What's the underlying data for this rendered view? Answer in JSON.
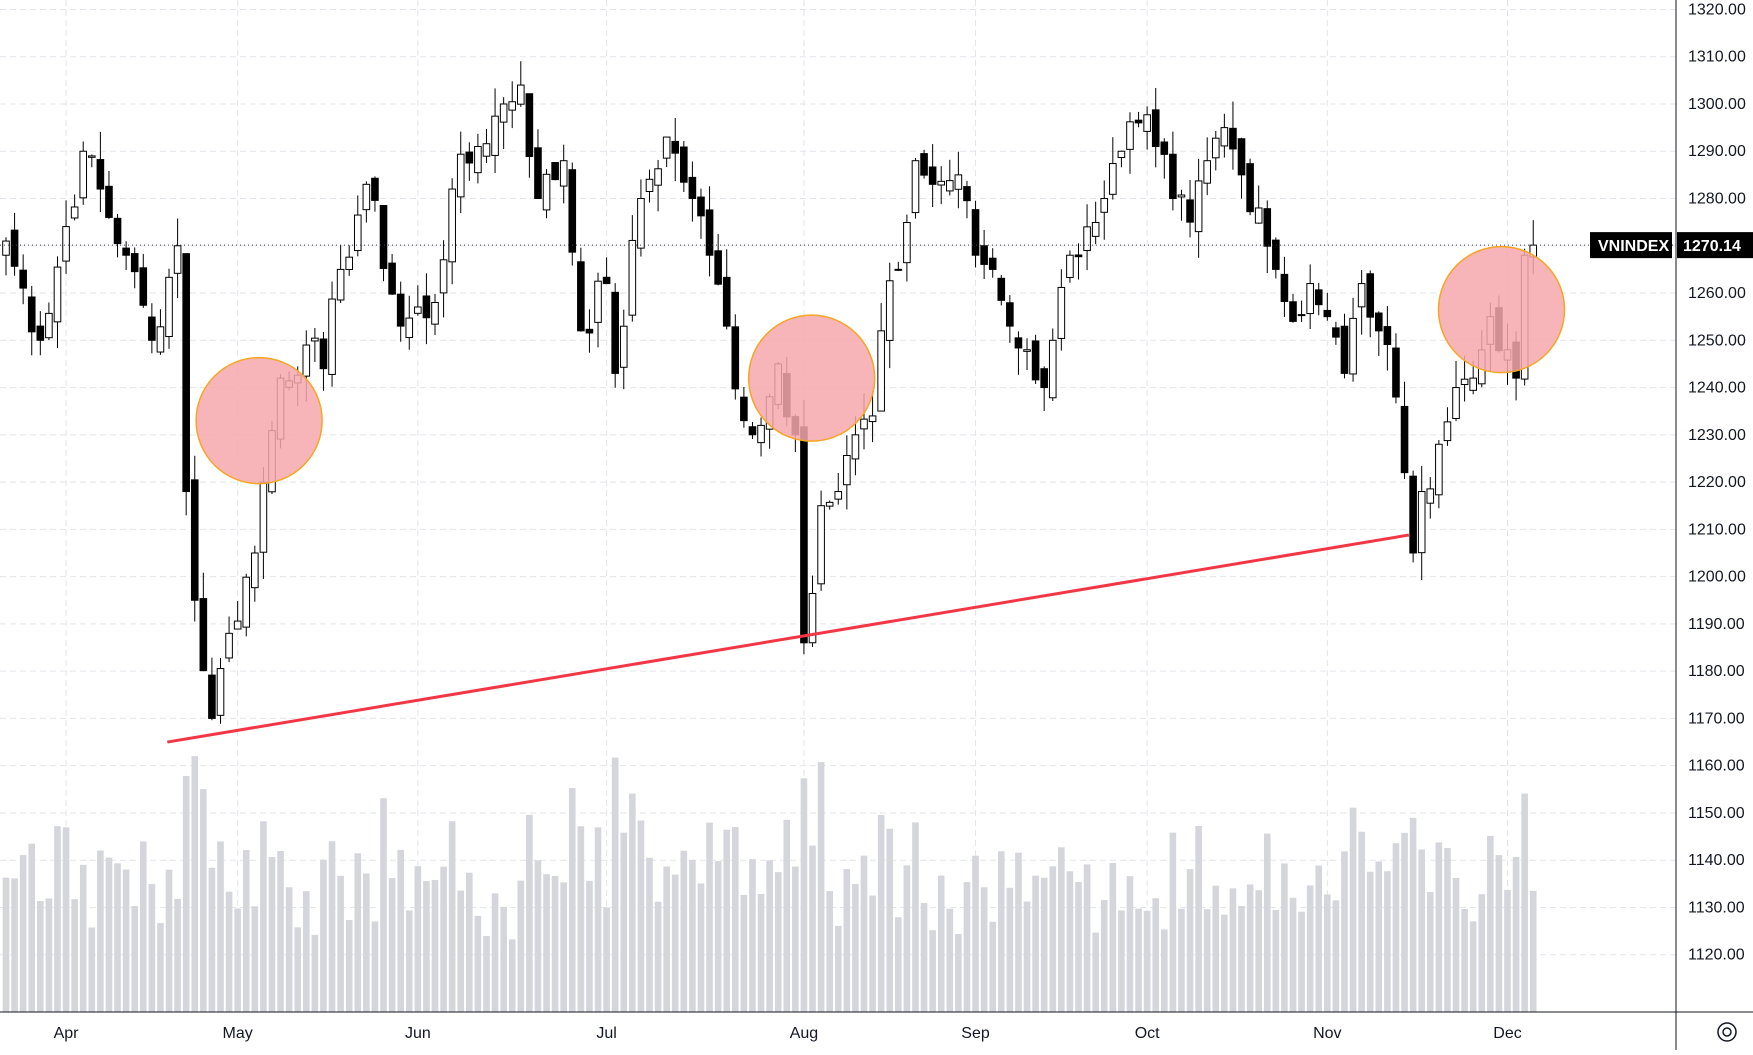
{
  "chart_data": {
    "type": "candlestick",
    "symbol": "VNINDEX",
    "last_price": "1270.14",
    "ylim": [
      1110,
      1322
    ],
    "y_ticks": [
      "1320.00",
      "1310.00",
      "1300.00",
      "1290.00",
      "1280.00",
      "1270.00",
      "1260.00",
      "1250.00",
      "1240.00",
      "1230.00",
      "1220.00",
      "1210.00",
      "1200.00",
      "1190.00",
      "1180.00",
      "1170.00",
      "1160.00",
      "1150.00",
      "1140.00",
      "1130.00",
      "1120.00"
    ],
    "month_labels": [
      {
        "label": "Apr",
        "bar": 7
      },
      {
        "label": "May",
        "bar": 27
      },
      {
        "label": "Jun",
        "bar": 48
      },
      {
        "label": "Jul",
        "bar": 70
      },
      {
        "label": "Aug",
        "bar": 93
      },
      {
        "label": "Sep",
        "bar": 113
      },
      {
        "label": "Oct",
        "bar": 133
      },
      {
        "label": "Nov",
        "bar": 154
      },
      {
        "label": "Dec",
        "bar": 175
      }
    ],
    "key_points": [
      {
        "bar": 0,
        "close": 1271
      },
      {
        "bar": 4,
        "close": 1250
      },
      {
        "bar": 9,
        "close": 1290
      },
      {
        "bar": 14,
        "close": 1268
      },
      {
        "bar": 17,
        "close": 1250
      },
      {
        "bar": 20,
        "close": 1270
      },
      {
        "bar": 21,
        "close": 1218
      },
      {
        "bar": 22,
        "close": 1195
      },
      {
        "bar": 24,
        "close": 1170
      },
      {
        "bar": 26,
        "close": 1188
      },
      {
        "bar": 29,
        "close": 1205
      },
      {
        "bar": 30,
        "close": 1220
      },
      {
        "bar": 32,
        "close": 1242
      },
      {
        "bar": 35,
        "close": 1249
      },
      {
        "bar": 37,
        "close": 1244
      },
      {
        "bar": 39,
        "close": 1265
      },
      {
        "bar": 42,
        "close": 1283
      },
      {
        "bar": 46,
        "close": 1253
      },
      {
        "bar": 50,
        "close": 1258
      },
      {
        "bar": 52,
        "close": 1282
      },
      {
        "bar": 55,
        "close": 1291
      },
      {
        "bar": 58,
        "close": 1300
      },
      {
        "bar": 60,
        "close": 1304
      },
      {
        "bar": 62,
        "close": 1280
      },
      {
        "bar": 65,
        "close": 1288
      },
      {
        "bar": 67,
        "close": 1252
      },
      {
        "bar": 70,
        "close": 1262
      },
      {
        "bar": 71,
        "close": 1243
      },
      {
        "bar": 74,
        "close": 1280
      },
      {
        "bar": 77,
        "close": 1293
      },
      {
        "bar": 80,
        "close": 1280
      },
      {
        "bar": 82,
        "close": 1268
      },
      {
        "bar": 84,
        "close": 1253
      },
      {
        "bar": 86,
        "close": 1233
      },
      {
        "bar": 88,
        "close": 1232
      },
      {
        "bar": 90,
        "close": 1245
      },
      {
        "bar": 92,
        "close": 1230
      },
      {
        "bar": 93,
        "close": 1186
      },
      {
        "bar": 95,
        "close": 1215
      },
      {
        "bar": 97,
        "close": 1218
      },
      {
        "bar": 99,
        "close": 1230
      },
      {
        "bar": 101,
        "close": 1234
      },
      {
        "bar": 102,
        "close": 1252
      },
      {
        "bar": 104,
        "close": 1265
      },
      {
        "bar": 106,
        "close": 1288
      },
      {
        "bar": 108,
        "close": 1283
      },
      {
        "bar": 111,
        "close": 1285
      },
      {
        "bar": 113,
        "close": 1268
      },
      {
        "bar": 115,
        "close": 1265
      },
      {
        "bar": 117,
        "close": 1253
      },
      {
        "bar": 119,
        "close": 1248
      },
      {
        "bar": 121,
        "close": 1240
      },
      {
        "bar": 122,
        "close": 1250
      },
      {
        "bar": 124,
        "close": 1268
      },
      {
        "bar": 126,
        "close": 1274
      },
      {
        "bar": 128,
        "close": 1280
      },
      {
        "bar": 130,
        "close": 1290
      },
      {
        "bar": 132,
        "close": 1296
      },
      {
        "bar": 134,
        "close": 1291
      },
      {
        "bar": 136,
        "close": 1280
      },
      {
        "bar": 138,
        "close": 1275
      },
      {
        "bar": 140,
        "close": 1288
      },
      {
        "bar": 142,
        "close": 1295
      },
      {
        "bar": 144,
        "close": 1285
      },
      {
        "bar": 146,
        "close": 1278
      },
      {
        "bar": 148,
        "close": 1265
      },
      {
        "bar": 150,
        "close": 1254
      },
      {
        "bar": 152,
        "close": 1262
      },
      {
        "bar": 154,
        "close": 1255
      },
      {
        "bar": 156,
        "close": 1243
      },
      {
        "bar": 158,
        "close": 1262
      },
      {
        "bar": 160,
        "close": 1252
      },
      {
        "bar": 162,
        "close": 1238
      },
      {
        "bar": 163,
        "close": 1222
      },
      {
        "bar": 164,
        "close": 1205
      },
      {
        "bar": 165,
        "close": 1218
      },
      {
        "bar": 167,
        "close": 1228
      },
      {
        "bar": 169,
        "close": 1240
      },
      {
        "bar": 171,
        "close": 1242
      },
      {
        "bar": 173,
        "close": 1255
      },
      {
        "bar": 175,
        "close": 1248
      },
      {
        "bar": 176,
        "close": 1242
      },
      {
        "bar": 177,
        "close": 1268
      },
      {
        "bar": 178,
        "close": 1270.14
      }
    ],
    "volume_range": [
      0.25,
      0.95
    ]
  }
}
